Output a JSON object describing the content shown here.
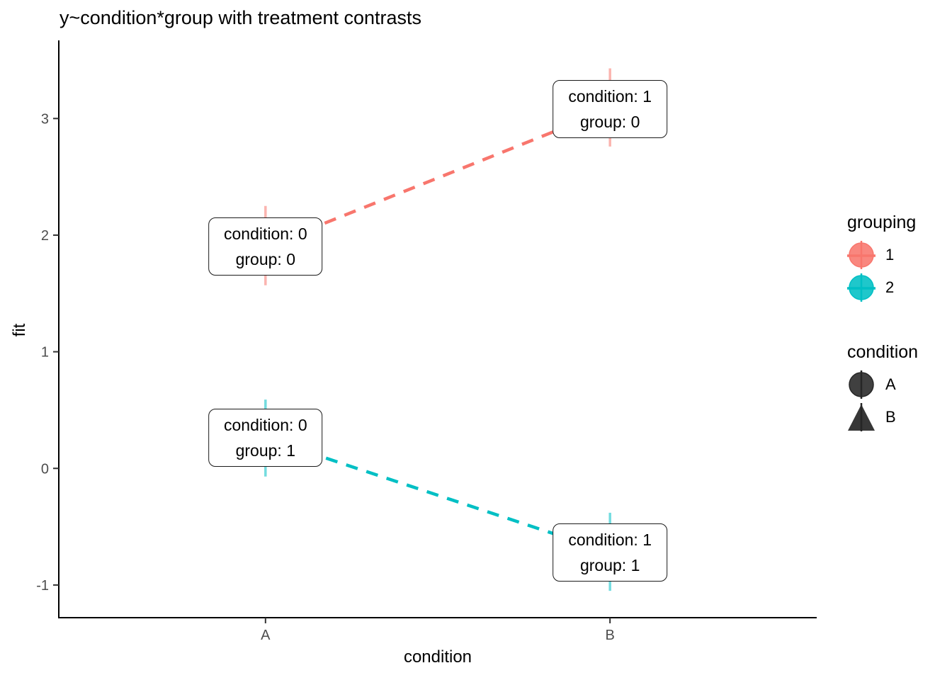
{
  "title": "y~condition*group with treatment contrasts",
  "axes": {
    "x": {
      "label": "condition"
    },
    "y": {
      "label": "fit"
    }
  },
  "legend": {
    "groups": [
      {
        "title": "grouping",
        "entries": [
          {
            "label": "1",
            "color": "#F8766D",
            "shape": "circle",
            "key_lines": "cross"
          },
          {
            "label": "2",
            "color": "#00BFC4",
            "shape": "circle",
            "key_lines": "cross"
          }
        ]
      },
      {
        "title": "condition",
        "entries": [
          {
            "label": "A",
            "color": "#262626",
            "shape": "circle",
            "key_lines": "vertical"
          },
          {
            "label": "B",
            "color": "#262626",
            "shape": "triangle",
            "key_lines": "vertical"
          }
        ]
      }
    ]
  },
  "chart_data": {
    "type": "line",
    "title": "y~condition*group with treatment contrasts",
    "xlabel": "condition",
    "ylabel": "fit",
    "x_categories": [
      "A",
      "B"
    ],
    "yticks": [
      3,
      2,
      1,
      0,
      -1
    ],
    "xticks": [
      "A",
      "B"
    ],
    "ylim": [
      -1.28,
      3.67
    ],
    "grid": false,
    "line_style": "dashed",
    "legend_position": "right",
    "series": [
      {
        "name": "1",
        "color": "#F8766D",
        "points": [
          {
            "x": "A",
            "fit": 1.9,
            "ci_low": 1.57,
            "ci_high": 2.25,
            "shape": "circle"
          },
          {
            "x": "B",
            "fit": 3.08,
            "ci_low": 2.76,
            "ci_high": 3.43,
            "shape": "triangle"
          }
        ]
      },
      {
        "name": "2",
        "color": "#00BFC4",
        "points": [
          {
            "x": "A",
            "fit": 0.26,
            "ci_low": -0.07,
            "ci_high": 0.59,
            "shape": "circle"
          },
          {
            "x": "B",
            "fit": -0.72,
            "ci_low": -1.05,
            "ci_high": -0.38,
            "shape": "triangle"
          }
        ]
      }
    ],
    "annotations": [
      {
        "x": "A",
        "series": "1",
        "line1": "condition: 0",
        "line2": "group: 0"
      },
      {
        "x": "B",
        "series": "1",
        "line1": "condition: 1",
        "line2": "group: 0"
      },
      {
        "x": "A",
        "series": "2",
        "line1": "condition: 0",
        "line2": "group: 1"
      },
      {
        "x": "B",
        "series": "2",
        "line1": "condition: 1",
        "line2": "group: 1"
      }
    ]
  }
}
